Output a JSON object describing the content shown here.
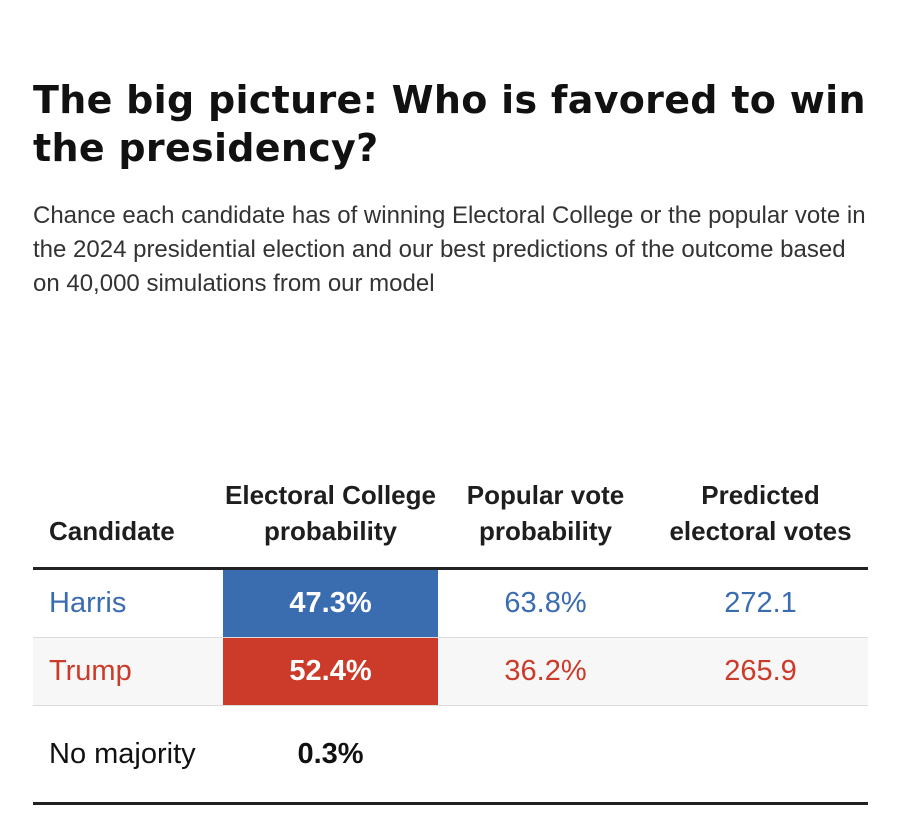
{
  "title": "The big picture: Who is favored to win the presidency?",
  "subtitle": "Chance each candidate has of winning Electoral College or the popular vote in the 2024 presidential election and our best predictions of the outcome based on 40,000 simulations from our model",
  "colors": {
    "harris": "#3a6cb0",
    "trump": "#cc3a29"
  },
  "chart_data": {
    "type": "table",
    "title": "The big picture: Who is favored to win the presidency?",
    "subtitle": "Chance each candidate has of winning Electoral College or the popular vote in the 2024 presidential election and our best predictions of the outcome based on 40,000 simulations from our model",
    "columns": [
      "Candidate",
      "Electoral College probability",
      "Popular vote probability",
      "Predicted electoral votes"
    ],
    "rows": [
      {
        "candidate": "Harris",
        "electoral_college_probability": "47.3%",
        "popular_vote_probability": "63.8%",
        "predicted_electoral_votes": "272.1"
      },
      {
        "candidate": "Trump",
        "electoral_college_probability": "52.4%",
        "popular_vote_probability": "36.2%",
        "predicted_electoral_votes": "265.9"
      },
      {
        "candidate": "No majority",
        "electoral_college_probability": "0.3%",
        "popular_vote_probability": "",
        "predicted_electoral_votes": ""
      }
    ]
  }
}
